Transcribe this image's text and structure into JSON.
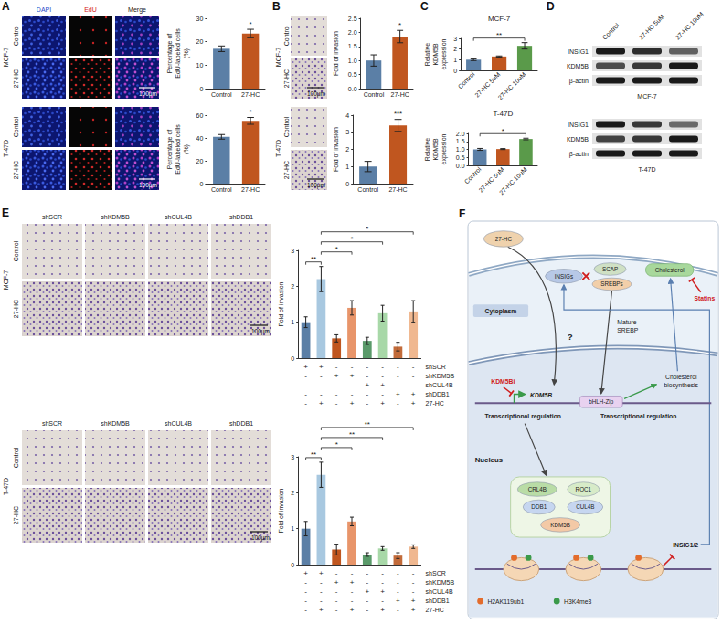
{
  "panel_letters": [
    "A",
    "B",
    "C",
    "D",
    "E",
    "F"
  ],
  "images": {
    "A": {
      "columns": [
        "DAPI",
        "EdU",
        "Merge"
      ],
      "rows": [
        "Control",
        "27-HC"
      ],
      "cell_lines": [
        "MCF-7",
        "T-47D"
      ],
      "scale_bar": "100μm"
    },
    "B": {
      "rows": [
        "Control",
        "27-HC"
      ],
      "cell_lines": [
        "MCF-7",
        "T-47D"
      ],
      "scale_bar": "100μm"
    },
    "E": {
      "columns": [
        "shSCR",
        "shKDM5B",
        "shCUL4B",
        "shDDB1"
      ],
      "rows": [
        "Control",
        "27-HC"
      ],
      "cell_lines": [
        "MCF-7",
        "T-47D"
      ],
      "scale_bar": "100μm"
    }
  },
  "blots": {
    "columns": [
      "Control",
      "27-HC 5uM",
      "27-HC 10uM"
    ],
    "panels": [
      {
        "cell_line": "MCF-7",
        "bands": [
          {
            "label": "INSIG1",
            "intensity": [
              1,
              0.9,
              0.65
            ]
          },
          {
            "label": "KDM5B",
            "intensity": [
              0.75,
              0.85,
              1
            ]
          },
          {
            "label": "β-actin",
            "intensity": [
              1,
              1,
              1
            ]
          }
        ]
      },
      {
        "cell_line": "T-47D",
        "bands": [
          {
            "label": "INSIG1",
            "intensity": [
              1,
              0.85,
              0.6
            ]
          },
          {
            "label": "KDM5B",
            "intensity": [
              0.8,
              0.85,
              1
            ]
          },
          {
            "label": "β-actin",
            "intensity": [
              1,
              1,
              1
            ]
          }
        ]
      }
    ]
  },
  "chart_data": [
    {
      "type": "bar",
      "y_label": "Percentage of EdU-labeled cells (%)",
      "categories": [
        "Control",
        "27-HC"
      ],
      "values": [
        17,
        23.5
      ],
      "errors": [
        1.2,
        1.8
      ],
      "colors": [
        "#5b7fa6",
        "#c0561f"
      ],
      "ylim": [
        0,
        30
      ],
      "yticks": [
        0,
        10,
        20,
        30
      ],
      "significance": [
        {
          "bars": [
            1
          ],
          "label": "*"
        }
      ]
    },
    {
      "type": "bar",
      "y_label": "Percentage of EdU-labeled cells (%)",
      "categories": [
        "Control",
        "27-HC"
      ],
      "values": [
        41,
        55
      ],
      "errors": [
        2,
        3
      ],
      "colors": [
        "#5b7fa6",
        "#c0561f"
      ],
      "ylim": [
        0,
        60
      ],
      "yticks": [
        0,
        20,
        40,
        60
      ],
      "significance": [
        {
          "bars": [
            1
          ],
          "label": "*"
        }
      ]
    },
    {
      "type": "bar",
      "y_label": "Fold of invasion",
      "categories": [
        "Control",
        "27-HC"
      ],
      "values": [
        1,
        1.85
      ],
      "errors": [
        0.2,
        0.22
      ],
      "colors": [
        "#5b7fa6",
        "#c0561f"
      ],
      "ylim": [
        0,
        2.5
      ],
      "yticks": [
        {
          "value": 0,
          "label": "0.0"
        },
        0.5,
        {
          "value": 1,
          "label": "1.0"
        },
        1.5,
        {
          "value": 2,
          "label": "2.0"
        },
        2.5
      ],
      "significance": [
        {
          "bars": [
            1
          ],
          "label": "*"
        }
      ]
    },
    {
      "type": "bar",
      "y_label": "Fold of invasion",
      "categories": [
        "Control",
        "27-HC"
      ],
      "values": [
        1,
        3.4
      ],
      "errors": [
        0.3,
        0.35
      ],
      "colors": [
        "#5b7fa6",
        "#c0561f"
      ],
      "ylim": [
        0,
        4
      ],
      "yticks": [
        0,
        1,
        2,
        3,
        4
      ],
      "significance": [
        {
          "bars": [
            1
          ],
          "label": "***"
        }
      ]
    },
    {
      "type": "bar",
      "title": "MCF-7",
      "y_label": "Relative KDM5B expression",
      "categories": [
        "Control",
        "27-HC 5uM",
        "27-HC 10uM"
      ],
      "values": [
        1,
        1.3,
        2.3
      ],
      "errors": [
        0.08,
        0.05,
        0.3
      ],
      "colors": [
        "#5b7fa6",
        "#c0561f",
        "#5a9a4a"
      ],
      "ylim": [
        0,
        3
      ],
      "yticks": [
        0,
        1,
        2,
        3
      ],
      "significance": [
        {
          "bars": [
            0,
            2
          ],
          "label": "**"
        }
      ]
    },
    {
      "type": "bar",
      "title": "T-47D",
      "y_label": "Relative KDM5B expression",
      "categories": [
        "Control",
        "27-HC 5uM",
        "27-HC 10uM"
      ],
      "values": [
        1,
        1.02,
        1.65
      ],
      "errors": [
        0.06,
        0.03,
        0.05
      ],
      "colors": [
        "#5b7fa6",
        "#c0561f",
        "#5a9a4a"
      ],
      "ylim": [
        0,
        2
      ],
      "yticks": [
        {
          "value": 0,
          "label": "0.0"
        },
        0.5,
        {
          "value": 1,
          "label": "1.0"
        },
        1.5,
        {
          "value": 2,
          "label": "2.0"
        }
      ],
      "significance": [
        {
          "bars": [
            0,
            2
          ],
          "label": "*"
        }
      ]
    },
    {
      "type": "bar",
      "y_label": "Fold of invasion",
      "categories": [
        null,
        null,
        null,
        null,
        null,
        null,
        null,
        null
      ],
      "values": [
        1,
        2.2,
        0.55,
        1.4,
        0.48,
        1.25,
        0.32,
        1.3
      ],
      "errors": [
        0.15,
        0.35,
        0.1,
        0.2,
        0.1,
        0.22,
        0.12,
        0.3
      ],
      "colors": [
        "#5b7fa6",
        "#a8c8e0",
        "#c0561f",
        "#e8956a",
        "#5a9a6a",
        "#a8d8a8",
        "#c26b3a",
        "#f0b890"
      ],
      "ylim": [
        0,
        3
      ],
      "yticks": [
        0,
        1,
        2,
        3
      ],
      "significance": [
        {
          "bars": [
            0,
            1
          ],
          "label": "**"
        },
        {
          "bars": [
            1,
            3
          ],
          "label": "*"
        },
        {
          "bars": [
            1,
            5
          ],
          "label": "*"
        },
        {
          "bars": [
            1,
            7
          ],
          "label": "*"
        }
      ],
      "conditions": [
        {
          "label": "shSCR",
          "marks": [
            "+",
            "+",
            "-",
            "-",
            "-",
            "-",
            "-",
            "-"
          ]
        },
        {
          "label": "shKDM5B",
          "marks": [
            "-",
            "-",
            "+",
            "+",
            "-",
            "-",
            "-",
            "-"
          ]
        },
        {
          "label": "shCUL4B",
          "marks": [
            "-",
            "-",
            "-",
            "-",
            "+",
            "+",
            "-",
            "-"
          ]
        },
        {
          "label": "shDDB1",
          "marks": [
            "-",
            "-",
            "-",
            "-",
            "-",
            "-",
            "+",
            "+"
          ]
        },
        {
          "label": "27-HC",
          "marks": [
            "-",
            "+",
            "-",
            "+",
            "-",
            "+",
            "-",
            "+"
          ]
        }
      ]
    },
    {
      "type": "bar",
      "y_label": "Fold of invasion",
      "categories": [
        null,
        null,
        null,
        null,
        null,
        null,
        null,
        null
      ],
      "values": [
        1,
        2.5,
        0.42,
        1.2,
        0.28,
        0.45,
        0.25,
        0.5
      ],
      "errors": [
        0.2,
        0.35,
        0.15,
        0.12,
        0.05,
        0.05,
        0.08,
        0.05
      ],
      "colors": [
        "#5b7fa6",
        "#a8c8e0",
        "#c0561f",
        "#e8956a",
        "#5a9a6a",
        "#a8d8a8",
        "#c26b3a",
        "#f0b890"
      ],
      "ylim": [
        0,
        3
      ],
      "yticks": [
        0,
        1,
        2,
        3
      ],
      "significance": [
        {
          "bars": [
            0,
            1
          ],
          "label": "**"
        },
        {
          "bars": [
            1,
            3
          ],
          "label": "*"
        },
        {
          "bars": [
            1,
            5
          ],
          "label": "**"
        },
        {
          "bars": [
            1,
            7
          ],
          "label": "**"
        }
      ],
      "conditions": [
        {
          "label": "shSCR",
          "marks": [
            "+",
            "+",
            "-",
            "-",
            "-",
            "-",
            "-",
            "-"
          ]
        },
        {
          "label": "shKDM5B",
          "marks": [
            "-",
            "-",
            "+",
            "+",
            "-",
            "-",
            "-",
            "-"
          ]
        },
        {
          "label": "shCUL4B",
          "marks": [
            "-",
            "-",
            "-",
            "-",
            "+",
            "+",
            "-",
            "-"
          ]
        },
        {
          "label": "shDDB1",
          "marks": [
            "-",
            "-",
            "-",
            "-",
            "-",
            "-",
            "+",
            "+"
          ]
        },
        {
          "label": "27-HC",
          "marks": [
            "-",
            "+",
            "-",
            "+",
            "-",
            "+",
            "-",
            "+"
          ]
        }
      ]
    }
  ],
  "diagram": {
    "ligand": "27-HC",
    "unknown": "?",
    "cytoplasm": "Cytoplasm",
    "nucleus": "Nucleus",
    "membrane": [
      "INSIGs",
      "SCAP",
      "SREBPs"
    ],
    "cholesterol": "Cholesterol",
    "statins": "Statins",
    "mature": "Mature SREBP",
    "factor": "bHLH-Zip",
    "biosynthesis": "Cholesterol biosynthesis",
    "transcription": "Transcriptional regulation",
    "inhibitor": "KDM5Bi",
    "gene": "KDM5B",
    "complex": [
      "CRL4B",
      "ROC1",
      "DDB1",
      "KDM5B",
      "CUL4B"
    ],
    "target": "INSIG1/2",
    "marks": [
      {
        "label": "H2AK119ub1",
        "color": "#e36c2c"
      },
      {
        "label": "H3K4me3",
        "color": "#3a9a4a"
      }
    ]
  }
}
